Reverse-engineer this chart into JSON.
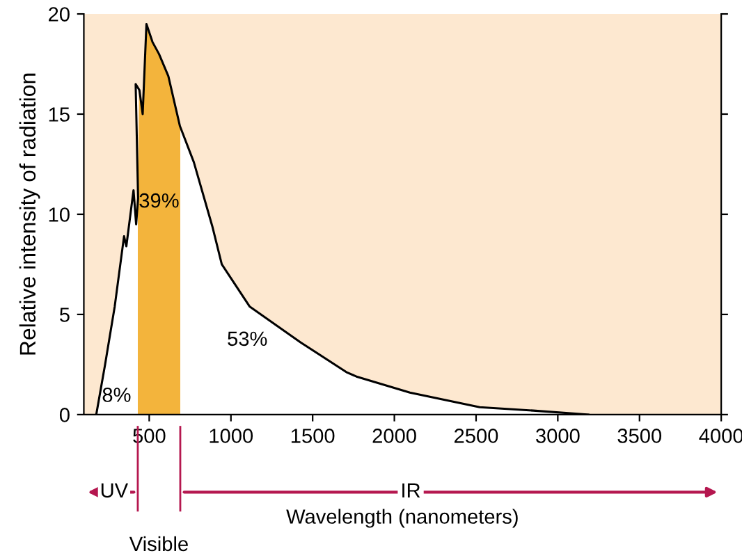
{
  "chart_data": {
    "type": "area",
    "xlabel": "Wavelength (nanometers)",
    "ylabel": "Relative intensity of radiation",
    "xlim": [
      100,
      4000
    ],
    "ylim": [
      0,
      20
    ],
    "xticks": [
      500,
      1000,
      1500,
      2000,
      2500,
      3000,
      3500,
      4000
    ],
    "yticks": [
      0,
      5,
      10,
      15,
      20
    ],
    "grid": false,
    "series": [
      {
        "color": "#000000",
        "x": [
          176,
          230,
          289,
          346,
          360,
          404,
          420,
          432,
          417,
          440,
          460,
          483,
          520,
          560,
          617,
          688,
          773,
          886,
          944,
          1114,
          1427,
          1711,
          1768,
          2095,
          2522,
          2850,
          3187
        ],
        "values": [
          0,
          2.5,
          5.4,
          8.9,
          8.4,
          11.2,
          9.5,
          10.8,
          16.5,
          16.2,
          15.0,
          19.5,
          18.6,
          18.0,
          16.9,
          14.4,
          12.6,
          9.4,
          7.5,
          5.4,
          3.6,
          2.1,
          1.9,
          1.1,
          0.37,
          0.2,
          0
        ]
      }
    ],
    "bands": [
      {
        "axis": "x",
        "from": 430,
        "to": 690,
        "label": "Visible",
        "color": "#f3b43c"
      }
    ],
    "annotations": [
      "8%",
      "39%",
      "53%",
      "UV",
      "IR"
    ]
  }
}
